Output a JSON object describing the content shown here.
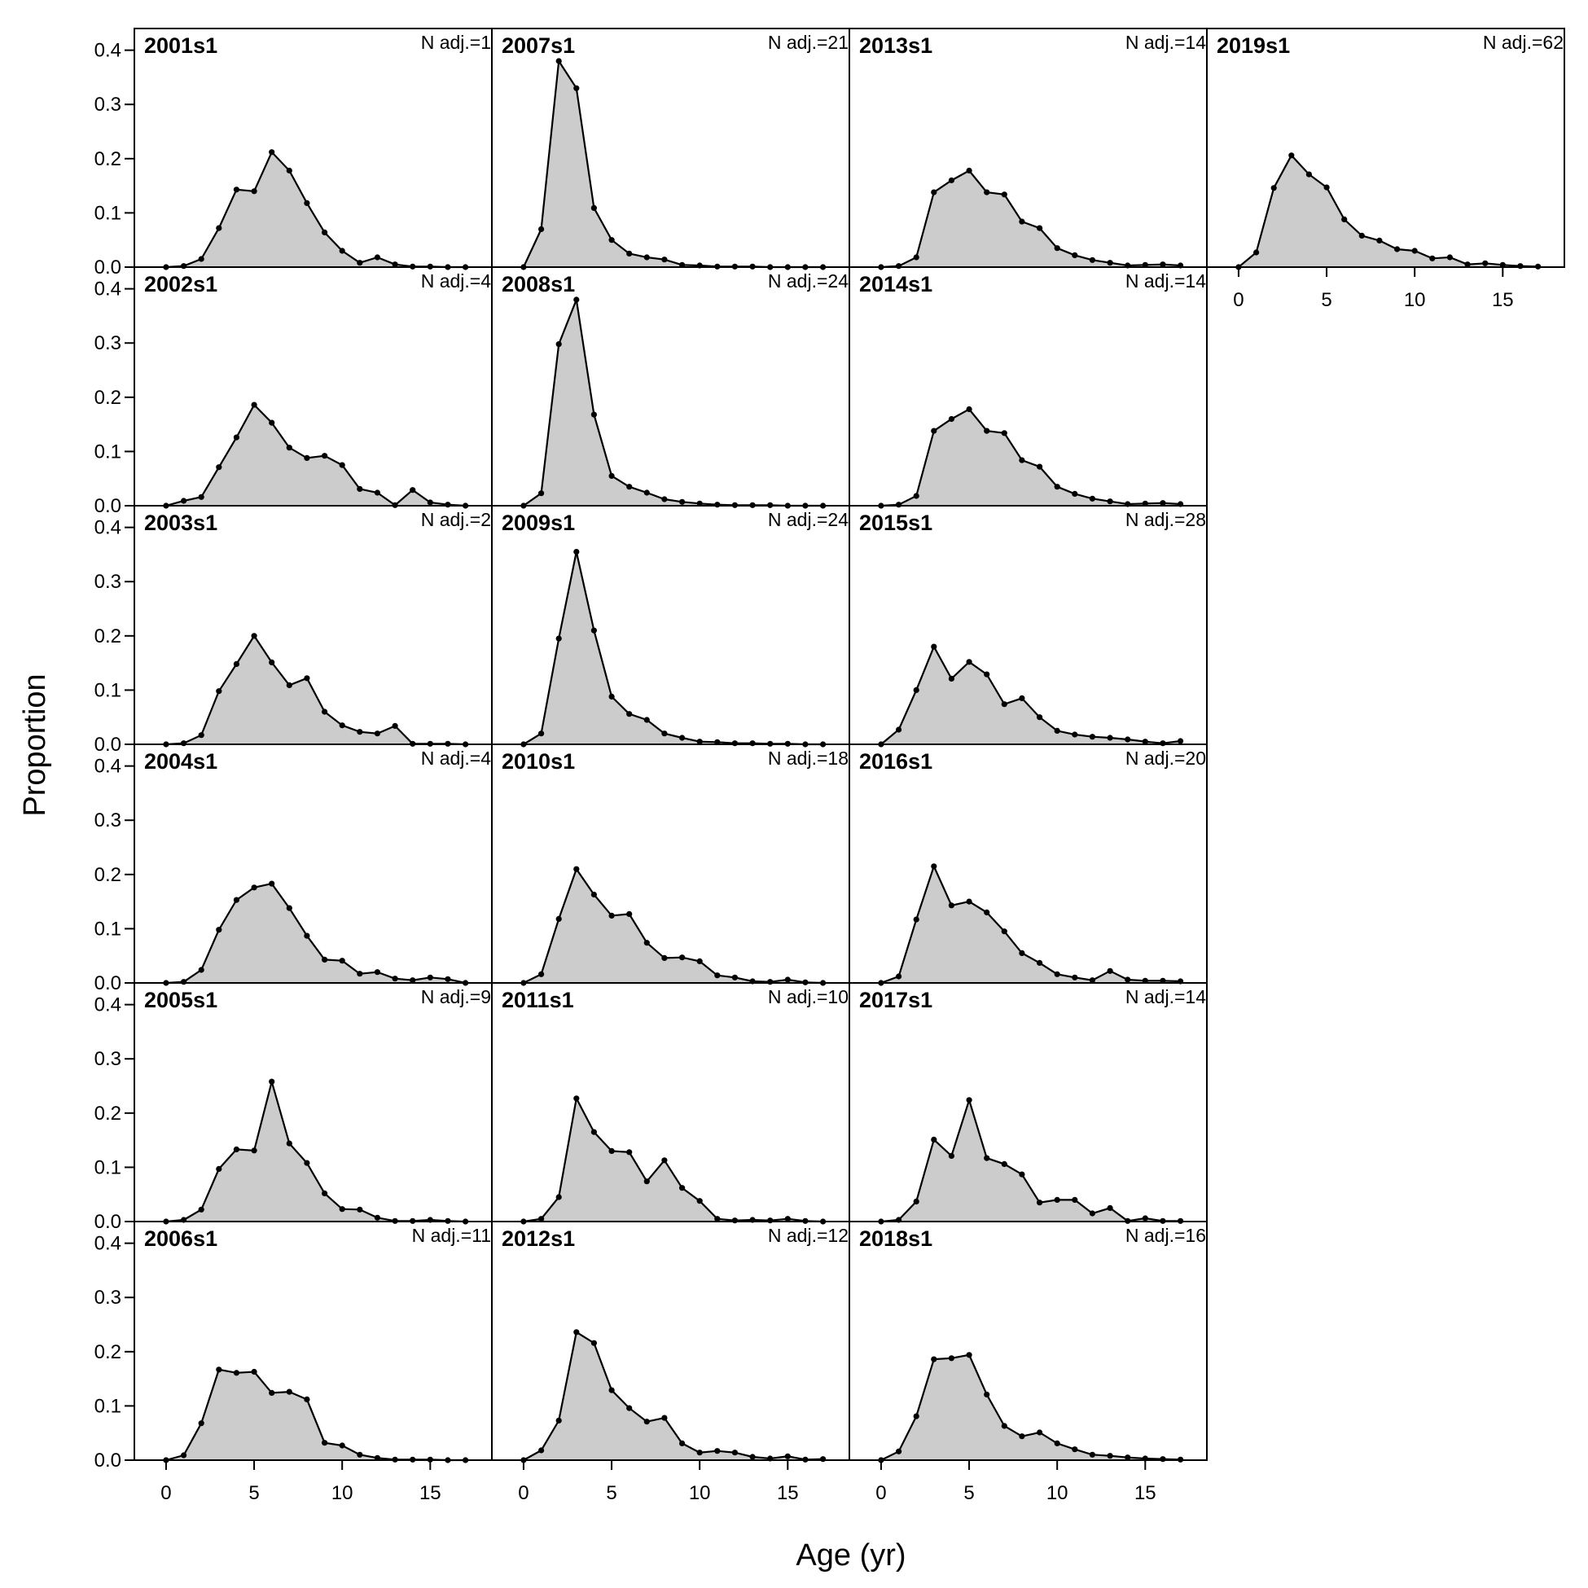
{
  "chart_data": {
    "type": "area",
    "xlabel": "Age (yr)",
    "ylabel": "Proportion",
    "xlim": [
      -1.8,
      18.5
    ],
    "ylim": [
      0,
      0.44
    ],
    "x_ticks": [
      0,
      5,
      10,
      15
    ],
    "y_ticks": [
      0.0,
      0.1,
      0.2,
      0.3,
      0.4
    ],
    "y_tick_labels": [
      "0.0",
      "0.1",
      "0.2",
      "0.3",
      "0.4"
    ],
    "ages": [
      0,
      1,
      2,
      3,
      4,
      5,
      6,
      7,
      8,
      9,
      10,
      11,
      12,
      13,
      14,
      15,
      16,
      17
    ],
    "colors": {
      "fill": "#cccccc",
      "line": "#000000",
      "point": "#000000"
    },
    "grid": false,
    "panels": [
      {
        "label": "2001s1",
        "n_adj": "N adj.=1",
        "values": [
          0,
          0.002,
          0.015,
          0.072,
          0.143,
          0.14,
          0.212,
          0.178,
          0.118,
          0.064,
          0.03,
          0.008,
          0.018,
          0.005,
          0.001,
          0.001,
          0,
          0
        ]
      },
      {
        "label": "2002s1",
        "n_adj": "N adj.=4",
        "values": [
          0,
          0.009,
          0.016,
          0.071,
          0.126,
          0.186,
          0.153,
          0.107,
          0.088,
          0.092,
          0.075,
          0.031,
          0.024,
          0.001,
          0.029,
          0.006,
          0.002,
          0
        ]
      },
      {
        "label": "2003s1",
        "n_adj": "N adj.=2",
        "values": [
          0,
          0.002,
          0.017,
          0.098,
          0.148,
          0.2,
          0.151,
          0.109,
          0.122,
          0.06,
          0.035,
          0.023,
          0.02,
          0.034,
          0.001,
          0.001,
          0.001,
          0
        ]
      },
      {
        "label": "2004s1",
        "n_adj": "N adj.=4",
        "values": [
          0,
          0.002,
          0.024,
          0.098,
          0.153,
          0.176,
          0.183,
          0.138,
          0.087,
          0.043,
          0.041,
          0.017,
          0.02,
          0.008,
          0.005,
          0.01,
          0.007,
          0
        ]
      },
      {
        "label": "2005s1",
        "n_adj": "N adj.=9",
        "values": [
          0,
          0.003,
          0.022,
          0.097,
          0.133,
          0.131,
          0.258,
          0.144,
          0.108,
          0.052,
          0.023,
          0.022,
          0.007,
          0.001,
          0.001,
          0.003,
          0.001,
          0
        ]
      },
      {
        "label": "2006s1",
        "n_adj": "N adj.=11",
        "values": [
          0,
          0.009,
          0.068,
          0.167,
          0.161,
          0.163,
          0.124,
          0.126,
          0.112,
          0.032,
          0.027,
          0.01,
          0.004,
          0.001,
          0.001,
          0.001,
          0,
          0
        ]
      },
      {
        "label": "2007s1",
        "n_adj": "N adj.=21",
        "values": [
          0,
          0.07,
          0.38,
          0.33,
          0.109,
          0.05,
          0.025,
          0.018,
          0.014,
          0.004,
          0.003,
          0.001,
          0.001,
          0.001,
          0,
          0,
          0,
          0
        ]
      },
      {
        "label": "2008s1",
        "n_adj": "N adj.=24",
        "values": [
          0,
          0.023,
          0.298,
          0.38,
          0.168,
          0.055,
          0.035,
          0.024,
          0.012,
          0.007,
          0.004,
          0.002,
          0.001,
          0.001,
          0.001,
          0,
          0,
          0
        ]
      },
      {
        "label": "2009s1",
        "n_adj": "N adj.=24",
        "values": [
          0,
          0.02,
          0.195,
          0.355,
          0.21,
          0.088,
          0.056,
          0.045,
          0.02,
          0.012,
          0.005,
          0.004,
          0.002,
          0.002,
          0.001,
          0.001,
          0,
          0
        ]
      },
      {
        "label": "2010s1",
        "n_adj": "N adj.=18",
        "values": [
          0,
          0.016,
          0.118,
          0.21,
          0.163,
          0.124,
          0.127,
          0.074,
          0.046,
          0.047,
          0.04,
          0.014,
          0.01,
          0.003,
          0.002,
          0.006,
          0.001,
          0
        ]
      },
      {
        "label": "2011s1",
        "n_adj": "N adj.=10",
        "values": [
          0,
          0.005,
          0.045,
          0.227,
          0.165,
          0.13,
          0.128,
          0.074,
          0.113,
          0.062,
          0.038,
          0.005,
          0.002,
          0.003,
          0.002,
          0.005,
          0.001,
          0
        ]
      },
      {
        "label": "2012s1",
        "n_adj": "N adj.=12",
        "values": [
          0,
          0.018,
          0.073,
          0.236,
          0.216,
          0.129,
          0.096,
          0.071,
          0.078,
          0.031,
          0.014,
          0.017,
          0.014,
          0.006,
          0.003,
          0.007,
          0.001,
          0.002
        ]
      },
      {
        "label": "2013s1",
        "n_adj": "N adj.=14",
        "values": [
          0,
          0.002,
          0.018,
          0.138,
          0.16,
          0.178,
          0.138,
          0.134,
          0.084,
          0.072,
          0.035,
          0.022,
          0.013,
          0.008,
          0.003,
          0.004,
          0.005,
          0.003
        ]
      },
      {
        "label": "2014s1",
        "n_adj": "N adj.=14",
        "values": [
          0,
          0.002,
          0.018,
          0.138,
          0.16,
          0.178,
          0.138,
          0.134,
          0.084,
          0.072,
          0.035,
          0.022,
          0.013,
          0.008,
          0.003,
          0.004,
          0.005,
          0.003
        ]
      },
      {
        "label": "2015s1",
        "n_adj": "N adj.=28",
        "values": [
          0,
          0.027,
          0.1,
          0.18,
          0.121,
          0.152,
          0.129,
          0.074,
          0.085,
          0.05,
          0.025,
          0.018,
          0.014,
          0.012,
          0.009,
          0.005,
          0.002,
          0.006
        ]
      },
      {
        "label": "2016s1",
        "n_adj": "N adj.=20",
        "values": [
          0,
          0.012,
          0.117,
          0.215,
          0.143,
          0.15,
          0.13,
          0.095,
          0.055,
          0.037,
          0.016,
          0.01,
          0.005,
          0.022,
          0.006,
          0.004,
          0.004,
          0.003
        ]
      },
      {
        "label": "2017s1",
        "n_adj": "N adj.=14",
        "values": [
          0,
          0.003,
          0.037,
          0.151,
          0.121,
          0.224,
          0.117,
          0.106,
          0.087,
          0.035,
          0.04,
          0.04,
          0.015,
          0.025,
          0.001,
          0.006,
          0.001,
          0.001
        ]
      },
      {
        "label": "2018s1",
        "n_adj": "N adj.=16",
        "values": [
          0,
          0.016,
          0.081,
          0.186,
          0.188,
          0.194,
          0.121,
          0.063,
          0.044,
          0.051,
          0.031,
          0.02,
          0.01,
          0.008,
          0.005,
          0.003,
          0.002,
          0.001
        ]
      },
      {
        "label": "2019s1",
        "n_adj": "N adj.=62",
        "values": [
          0,
          0.027,
          0.146,
          0.206,
          0.171,
          0.147,
          0.088,
          0.058,
          0.049,
          0.033,
          0.03,
          0.016,
          0.018,
          0.005,
          0.007,
          0.004,
          0.002,
          0.001
        ]
      }
    ]
  }
}
